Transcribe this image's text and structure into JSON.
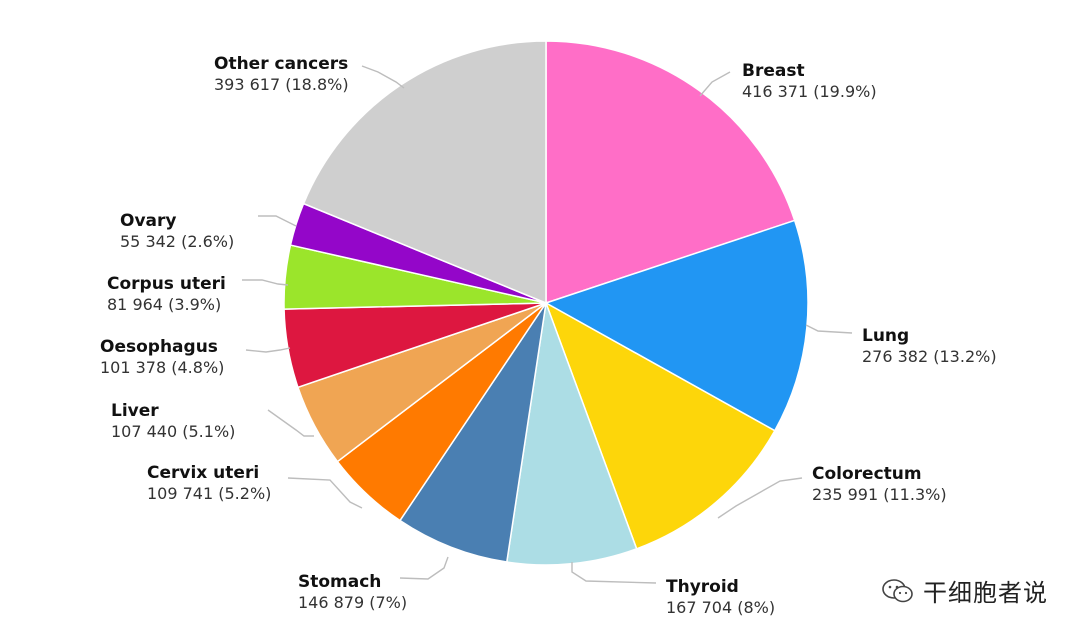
{
  "chart_data": {
    "type": "pie",
    "series": [
      {
        "name": "Breast",
        "value": 416371,
        "value_label": "416 371 (19.9%)",
        "percent": 19.9,
        "color": "#ff6ec7"
      },
      {
        "name": "Lung",
        "value": 276382,
        "value_label": "276 382 (13.2%)",
        "percent": 13.2,
        "color": "#2196f3"
      },
      {
        "name": "Colorectum",
        "value": 235991,
        "value_label": "235 991 (11.3%)",
        "percent": 11.3,
        "color": "#fdd60a"
      },
      {
        "name": "Thyroid",
        "value": 167704,
        "value_label": "167 704 (8%)",
        "percent": 8,
        "color": "#acdde5"
      },
      {
        "name": "Stomach",
        "value": 146879,
        "value_label": "146 879 (7%)",
        "percent": 7,
        "color": "#4a7fb2"
      },
      {
        "name": "Cervix uteri",
        "value": 109741,
        "value_label": "109 741 (5.2%)",
        "percent": 5.2,
        "color": "#ff7a00"
      },
      {
        "name": "Liver",
        "value": 107440,
        "value_label": "107 440 (5.1%)",
        "percent": 5.1,
        "color": "#f0a553"
      },
      {
        "name": "Oesophagus",
        "value": 101378,
        "value_label": "101 378 (4.8%)",
        "percent": 4.8,
        "color": "#dd1740"
      },
      {
        "name": "Corpus uteri",
        "value": 81964,
        "value_label": "81 964 (3.9%)",
        "percent": 3.9,
        "color": "#9be52b"
      },
      {
        "name": "Ovary",
        "value": 55342,
        "value_label": "55 342 (2.6%)",
        "percent": 2.6,
        "color": "#9406c9"
      },
      {
        "name": "Other cancers",
        "value": 393617,
        "value_label": "393 617 (18.8%)",
        "percent": 18.8,
        "color": "#cfcfcf"
      }
    ]
  },
  "watermark": {
    "text": "干细胞者说",
    "icon": "wechat-icon"
  }
}
